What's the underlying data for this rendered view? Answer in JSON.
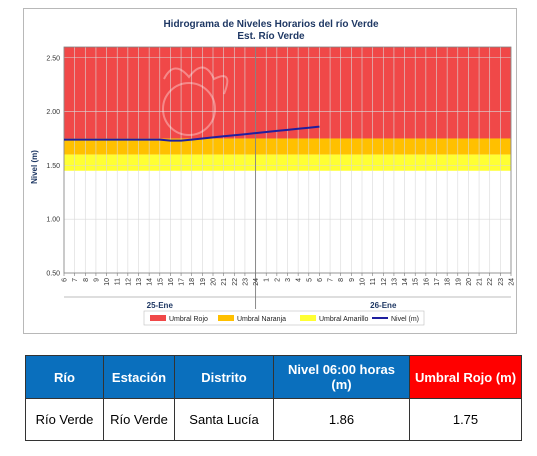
{
  "chart_data": {
    "type": "line",
    "title": "Hidrograma de Niveles Horarios del río Verde",
    "subtitle": "Est. Río Verde",
    "ylabel": "Nivel (m)",
    "ylim": [
      0.5,
      2.6
    ],
    "y_ticks": [
      "0.50",
      "1.00",
      "1.50",
      "2.00",
      "2.50"
    ],
    "x_ticks": [
      "6",
      "7",
      "8",
      "9",
      "10",
      "11",
      "12",
      "13",
      "14",
      "15",
      "16",
      "17",
      "18",
      "19",
      "20",
      "21",
      "22",
      "23",
      "24",
      "1",
      "2",
      "3",
      "4",
      "5",
      "6",
      "7",
      "8",
      "9",
      "10",
      "11",
      "12",
      "13",
      "14",
      "15",
      "16",
      "17",
      "18",
      "19",
      "20",
      "21",
      "22",
      "23",
      "24"
    ],
    "day_labels": [
      "25-Ene",
      "26-Ene"
    ],
    "bands": [
      {
        "name": "Umbral Rojo",
        "from": 1.75,
        "to": 2.6,
        "color": "#f04848"
      },
      {
        "name": "Umbral Naranja",
        "from": 1.6,
        "to": 1.75,
        "color": "#ffc000"
      },
      {
        "name": "Umbral Amarillo",
        "from": 1.45,
        "to": 1.6,
        "color": "#ffff33"
      }
    ],
    "series": [
      {
        "name": "Nivel (m)",
        "color": "#1f1f9f",
        "x": [
          0,
          1,
          2,
          3,
          4,
          5,
          6,
          7,
          8,
          9,
          10,
          11,
          12,
          13,
          14,
          15,
          16,
          17,
          18,
          19,
          20,
          21,
          22,
          23,
          24
        ],
        "values": [
          1.74,
          1.74,
          1.74,
          1.74,
          1.74,
          1.74,
          1.74,
          1.74,
          1.74,
          1.74,
          1.73,
          1.73,
          1.74,
          1.75,
          1.76,
          1.77,
          1.78,
          1.79,
          1.8,
          1.81,
          1.82,
          1.83,
          1.84,
          1.85,
          1.86
        ]
      }
    ],
    "legend": [
      "Umbral Rojo",
      "Umbral Naranja",
      "Umbral Amarillo",
      "Nivel (m)"
    ],
    "legend_position": "bottom",
    "grid": true
  },
  "table": {
    "headers": [
      "Río",
      "Estación",
      "Distrito",
      "Nivel 06:00 horas (m)",
      "Umbral Rojo (m)"
    ],
    "row": [
      "Río Verde",
      "Río Verde",
      "Santa Lucía",
      "1.86",
      "1.75"
    ]
  }
}
